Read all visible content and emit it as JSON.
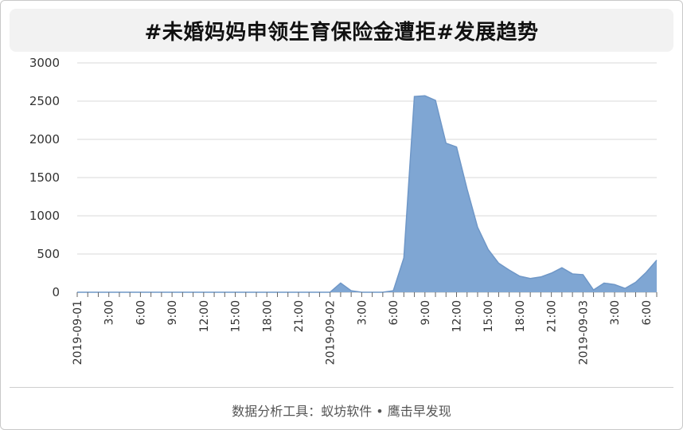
{
  "title": "#未婚妈妈申领生育保险金遭拒#发展趋势",
  "footer": "数据分析工具：蚁坊软件 • 鹰击早发现",
  "colors": {
    "area_fill": "#7fa6d3",
    "area_stroke": "#6f97c7",
    "grid": "#d9d9d9",
    "baseline": "#bfbfbf"
  },
  "chart_data": {
    "type": "area",
    "x_labels": [
      "2019-09-01",
      "3:00",
      "6:00",
      "9:00",
      "12:00",
      "15:00",
      "18:00",
      "21:00",
      "2019-09-02",
      "3:00",
      "6:00",
      "9:00",
      "12:00",
      "15:00",
      "18:00",
      "21:00",
      "2019-09-03",
      "3:00",
      "6:00"
    ],
    "x": [
      "09-01 00:00",
      "09-01 01:00",
      "09-01 02:00",
      "09-01 03:00",
      "09-01 04:00",
      "09-01 05:00",
      "09-01 06:00",
      "09-01 07:00",
      "09-01 08:00",
      "09-01 09:00",
      "09-01 10:00",
      "09-01 11:00",
      "09-01 12:00",
      "09-01 13:00",
      "09-01 14:00",
      "09-01 15:00",
      "09-01 16:00",
      "09-01 17:00",
      "09-01 18:00",
      "09-01 19:00",
      "09-01 20:00",
      "09-01 21:00",
      "09-01 22:00",
      "09-01 23:00",
      "09-02 00:00",
      "09-02 01:00",
      "09-02 02:00",
      "09-02 03:00",
      "09-02 04:00",
      "09-02 05:00",
      "09-02 06:00",
      "09-02 07:00",
      "09-02 08:00",
      "09-02 09:00",
      "09-02 10:00",
      "09-02 11:00",
      "09-02 12:00",
      "09-02 13:00",
      "09-02 14:00",
      "09-02 15:00",
      "09-02 16:00",
      "09-02 17:00",
      "09-02 18:00",
      "09-02 19:00",
      "09-02 20:00",
      "09-02 21:00",
      "09-02 22:00",
      "09-02 23:00",
      "09-03 00:00",
      "09-03 01:00",
      "09-03 02:00",
      "09-03 03:00",
      "09-03 04:00",
      "09-03 05:00",
      "09-03 06:00",
      "09-03 07:00"
    ],
    "values": [
      0,
      0,
      0,
      0,
      0,
      0,
      0,
      0,
      0,
      0,
      0,
      0,
      0,
      0,
      0,
      0,
      0,
      0,
      0,
      0,
      0,
      0,
      0,
      0,
      0,
      120,
      20,
      0,
      0,
      0,
      20,
      450,
      2560,
      2570,
      2510,
      1950,
      1900,
      1350,
      850,
      560,
      380,
      290,
      210,
      180,
      200,
      250,
      320,
      240,
      230,
      30,
      120,
      100,
      50,
      130,
      260,
      420
    ],
    "ylim": [
      0,
      3000
    ],
    "yticks": [
      0,
      500,
      1000,
      1500,
      2000,
      2500,
      3000
    ],
    "grid": true,
    "legend": "none"
  }
}
